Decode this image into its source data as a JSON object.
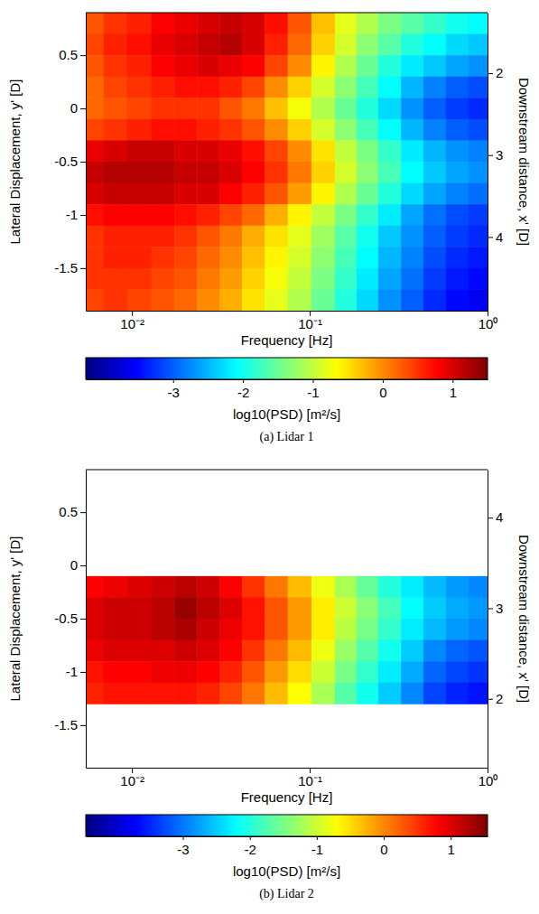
{
  "chart_data": [
    {
      "type": "heatmap",
      "title": "(a) Lidar 1",
      "x_label": "Frequency [Hz]",
      "y_label": "Lateral Displacement, y' [D]",
      "y2_label": "Downstream distance, x' [D]",
      "log": "x",
      "xlim": [
        0.0055,
        1
      ],
      "xticks": [
        {
          "value": 0.01,
          "label": "10⁻²"
        },
        {
          "value": 0.1,
          "label": "10⁻¹"
        },
        {
          "value": 1,
          "label": "10⁰"
        }
      ],
      "ylim": [
        -1.9,
        0.9
      ],
      "yticks": [
        -1.5,
        -1,
        -0.5,
        0,
        0.5
      ],
      "y2lim": [
        4.9,
        1.26
      ],
      "y2ticks": [
        2,
        3,
        4
      ],
      "x": [
        0.006,
        0.008,
        0.011,
        0.015,
        0.02,
        0.027,
        0.036,
        0.048,
        0.065,
        0.087,
        0.12,
        0.16,
        0.21,
        0.28,
        0.38,
        0.5,
        0.68,
        0.9
      ],
      "y": [
        0.8,
        0.6,
        0.4,
        0.2,
        0.0,
        -0.2,
        -0.4,
        -0.6,
        -0.8,
        -1.0,
        -1.2,
        -1.4,
        -1.6,
        -1.8
      ],
      "values": [
        [
          0.3,
          0.5,
          0.6,
          0.8,
          0.9,
          1.0,
          1.1,
          1.0,
          0.7,
          0.3,
          -0.3,
          -0.8,
          -1.1,
          -1.4,
          -1.6,
          -1.8,
          -2.0,
          -2.1
        ],
        [
          0.4,
          0.6,
          0.7,
          0.9,
          1.0,
          1.1,
          1.2,
          1.0,
          0.6,
          0.2,
          -0.4,
          -0.9,
          -1.3,
          -1.6,
          -1.9,
          -2.1,
          -2.3,
          -2.4
        ],
        [
          0.3,
          0.5,
          0.6,
          0.8,
          0.9,
          1.0,
          0.9,
          0.8,
          0.4,
          0.0,
          -0.6,
          -1.1,
          -1.5,
          -1.9,
          -2.2,
          -2.4,
          -2.6,
          -2.7
        ],
        [
          0.2,
          0.4,
          0.5,
          0.6,
          0.7,
          0.7,
          0.6,
          0.4,
          0.0,
          -0.4,
          -0.9,
          -1.3,
          -1.7,
          -2.1,
          -2.5,
          -2.8,
          -3.0,
          -3.1
        ],
        [
          0.2,
          0.3,
          0.4,
          0.5,
          0.5,
          0.5,
          0.3,
          0.1,
          -0.3,
          -0.7,
          -1.1,
          -1.5,
          -1.9,
          -2.3,
          -2.7,
          -3.0,
          -3.2,
          -3.3
        ],
        [
          0.4,
          0.5,
          0.6,
          0.7,
          0.7,
          0.6,
          0.5,
          0.3,
          0.0,
          -0.4,
          -0.9,
          -1.3,
          -1.7,
          -2.1,
          -2.5,
          -2.8,
          -3.0,
          -3.1
        ],
        [
          0.9,
          1.0,
          1.1,
          1.1,
          1.0,
          1.0,
          0.9,
          0.7,
          0.4,
          0.0,
          -0.5,
          -1.0,
          -1.4,
          -1.8,
          -2.2,
          -2.5,
          -2.7,
          -2.8
        ],
        [
          1.1,
          1.2,
          1.2,
          1.2,
          1.1,
          1.1,
          1.0,
          0.8,
          0.5,
          0.1,
          -0.4,
          -0.9,
          -1.3,
          -1.7,
          -2.1,
          -2.4,
          -2.6,
          -2.7
        ],
        [
          1.0,
          1.1,
          1.1,
          1.1,
          1.0,
          1.0,
          0.8,
          0.6,
          0.3,
          -0.1,
          -0.6,
          -1.1,
          -1.5,
          -1.9,
          -2.3,
          -2.6,
          -2.8,
          -2.9
        ],
        [
          0.7,
          0.8,
          0.8,
          0.8,
          0.7,
          0.6,
          0.4,
          0.2,
          -0.2,
          -0.6,
          -1.0,
          -1.4,
          -1.8,
          -2.2,
          -2.6,
          -2.9,
          -3.1,
          -3.2
        ],
        [
          0.5,
          0.6,
          0.6,
          0.6,
          0.5,
          0.3,
          0.1,
          -0.2,
          -0.5,
          -0.8,
          -1.2,
          -1.6,
          -2.0,
          -2.4,
          -2.7,
          -3.0,
          -3.2,
          -3.3
        ],
        [
          0.5,
          0.6,
          0.6,
          0.5,
          0.4,
          0.2,
          0.0,
          -0.3,
          -0.6,
          -0.9,
          -1.3,
          -1.7,
          -2.1,
          -2.5,
          -2.8,
          -3.1,
          -3.3,
          -3.4
        ],
        [
          0.5,
          0.5,
          0.5,
          0.4,
          0.3,
          0.1,
          -0.1,
          -0.4,
          -0.7,
          -1.0,
          -1.4,
          -1.8,
          -2.2,
          -2.6,
          -2.9,
          -3.2,
          -3.4,
          -3.5
        ],
        [
          0.4,
          0.5,
          0.4,
          0.3,
          0.2,
          0.0,
          -0.2,
          -0.5,
          -0.8,
          -1.1,
          -1.5,
          -1.9,
          -2.3,
          -2.7,
          -3.0,
          -3.3,
          -3.5,
          -3.6
        ]
      ],
      "colorbar": {
        "label": "log10(PSD) [m²/s]",
        "range": [
          -4.25,
          1.5
        ],
        "ticks": [
          -3,
          -2,
          -1,
          0,
          1
        ]
      }
    },
    {
      "type": "heatmap",
      "title": "(b) Lidar 2",
      "x_label": "Frequency [Hz]",
      "y_label": "Lateral Displacement, y' [D]",
      "y2_label": "Downstream distance, x' [D]",
      "log": "x",
      "xlim": [
        0.0055,
        1
      ],
      "xticks": [
        {
          "value": 0.01,
          "label": "10⁻²"
        },
        {
          "value": 0.1,
          "label": "10⁻¹"
        },
        {
          "value": 1,
          "label": "10⁰"
        }
      ],
      "ylim": [
        -1.9,
        0.9
      ],
      "yticks": [
        -1.5,
        -1,
        -0.5,
        0,
        0.5
      ],
      "y2lim": [
        1.24,
        4.53
      ],
      "y2ticks": [
        2,
        3,
        4
      ],
      "x": [
        0.006,
        0.008,
        0.011,
        0.015,
        0.02,
        0.027,
        0.036,
        0.048,
        0.065,
        0.087,
        0.12,
        0.16,
        0.21,
        0.28,
        0.38,
        0.5,
        0.68,
        0.9
      ],
      "y": [
        -0.2,
        -0.4,
        -0.6,
        -0.8,
        -1.0,
        -1.2
      ],
      "values": [
        [
          0.8,
          0.9,
          1.0,
          1.1,
          1.2,
          1.1,
          0.8,
          0.5,
          0.1,
          -0.3,
          -0.8,
          -1.2,
          -1.6,
          -2.0,
          -2.3,
          -2.6,
          -2.8,
          -2.9
        ],
        [
          1.0,
          1.1,
          1.1,
          1.2,
          1.4,
          1.2,
          1.0,
          0.7,
          0.3,
          -0.1,
          -0.6,
          -1.0,
          -1.4,
          -1.8,
          -2.2,
          -2.5,
          -2.7,
          -2.8
        ],
        [
          1.0,
          1.1,
          1.1,
          1.2,
          1.3,
          1.1,
          0.9,
          0.7,
          0.3,
          -0.1,
          -0.6,
          -1.1,
          -1.5,
          -1.9,
          -2.3,
          -2.6,
          -2.8,
          -2.9
        ],
        [
          0.9,
          1.0,
          1.0,
          1.0,
          1.1,
          1.0,
          0.8,
          0.5,
          0.1,
          -0.3,
          -0.8,
          -1.3,
          -1.7,
          -2.1,
          -2.5,
          -2.9,
          -3.1,
          -3.2
        ],
        [
          0.7,
          0.8,
          0.8,
          0.9,
          0.9,
          0.8,
          0.6,
          0.3,
          -0.1,
          -0.5,
          -1.0,
          -1.5,
          -1.9,
          -2.3,
          -2.7,
          -3.1,
          -3.3,
          -3.4
        ],
        [
          0.6,
          0.7,
          0.7,
          0.7,
          0.7,
          0.6,
          0.4,
          0.1,
          -0.3,
          -0.7,
          -1.2,
          -1.7,
          -2.1,
          -2.5,
          -2.9,
          -3.3,
          -3.5,
          -3.6
        ]
      ],
      "colorbar": {
        "label": "log10(PSD) [m²/s]",
        "range": [
          -4.45,
          1.55
        ],
        "ticks": [
          -3,
          -2,
          -1,
          0,
          1
        ]
      }
    }
  ]
}
